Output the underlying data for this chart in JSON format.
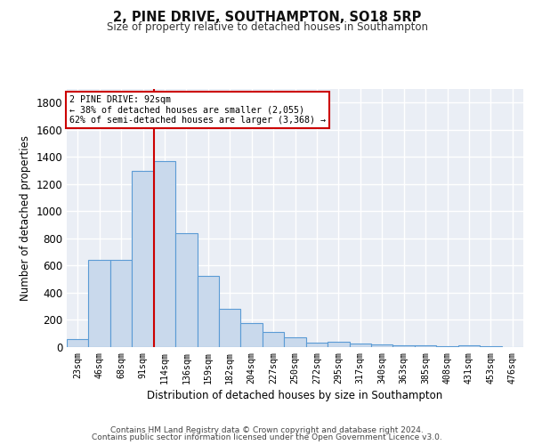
{
  "title": "2, PINE DRIVE, SOUTHAMPTON, SO18 5RP",
  "subtitle": "Size of property relative to detached houses in Southampton",
  "xlabel": "Distribution of detached houses by size in Southampton",
  "ylabel": "Number of detached properties",
  "categories": [
    "23sqm",
    "46sqm",
    "68sqm",
    "91sqm",
    "114sqm",
    "136sqm",
    "159sqm",
    "182sqm",
    "204sqm",
    "227sqm",
    "250sqm",
    "272sqm",
    "295sqm",
    "317sqm",
    "340sqm",
    "363sqm",
    "385sqm",
    "408sqm",
    "431sqm",
    "453sqm",
    "476sqm"
  ],
  "values": [
    60,
    640,
    640,
    1300,
    1370,
    840,
    525,
    285,
    175,
    110,
    70,
    35,
    40,
    25,
    20,
    15,
    10,
    5,
    15,
    5,
    0
  ],
  "bar_color": "#c9d9ec",
  "bar_edge_color": "#5b9bd5",
  "background_color": "#eaeef5",
  "grid_color": "#ffffff",
  "red_line_index": 3.5,
  "annotation_line1": "2 PINE DRIVE: 92sqm",
  "annotation_line2": "← 38% of detached houses are smaller (2,055)",
  "annotation_line3": "62% of semi-detached houses are larger (3,368) →",
  "annotation_box_color": "#ffffff",
  "annotation_box_edge": "#cc0000",
  "ylim": [
    0,
    1900
  ],
  "yticks": [
    0,
    200,
    400,
    600,
    800,
    1000,
    1200,
    1400,
    1600,
    1800
  ],
  "footer_line1": "Contains HM Land Registry data © Crown copyright and database right 2024.",
  "footer_line2": "Contains public sector information licensed under the Open Government Licence v3.0."
}
